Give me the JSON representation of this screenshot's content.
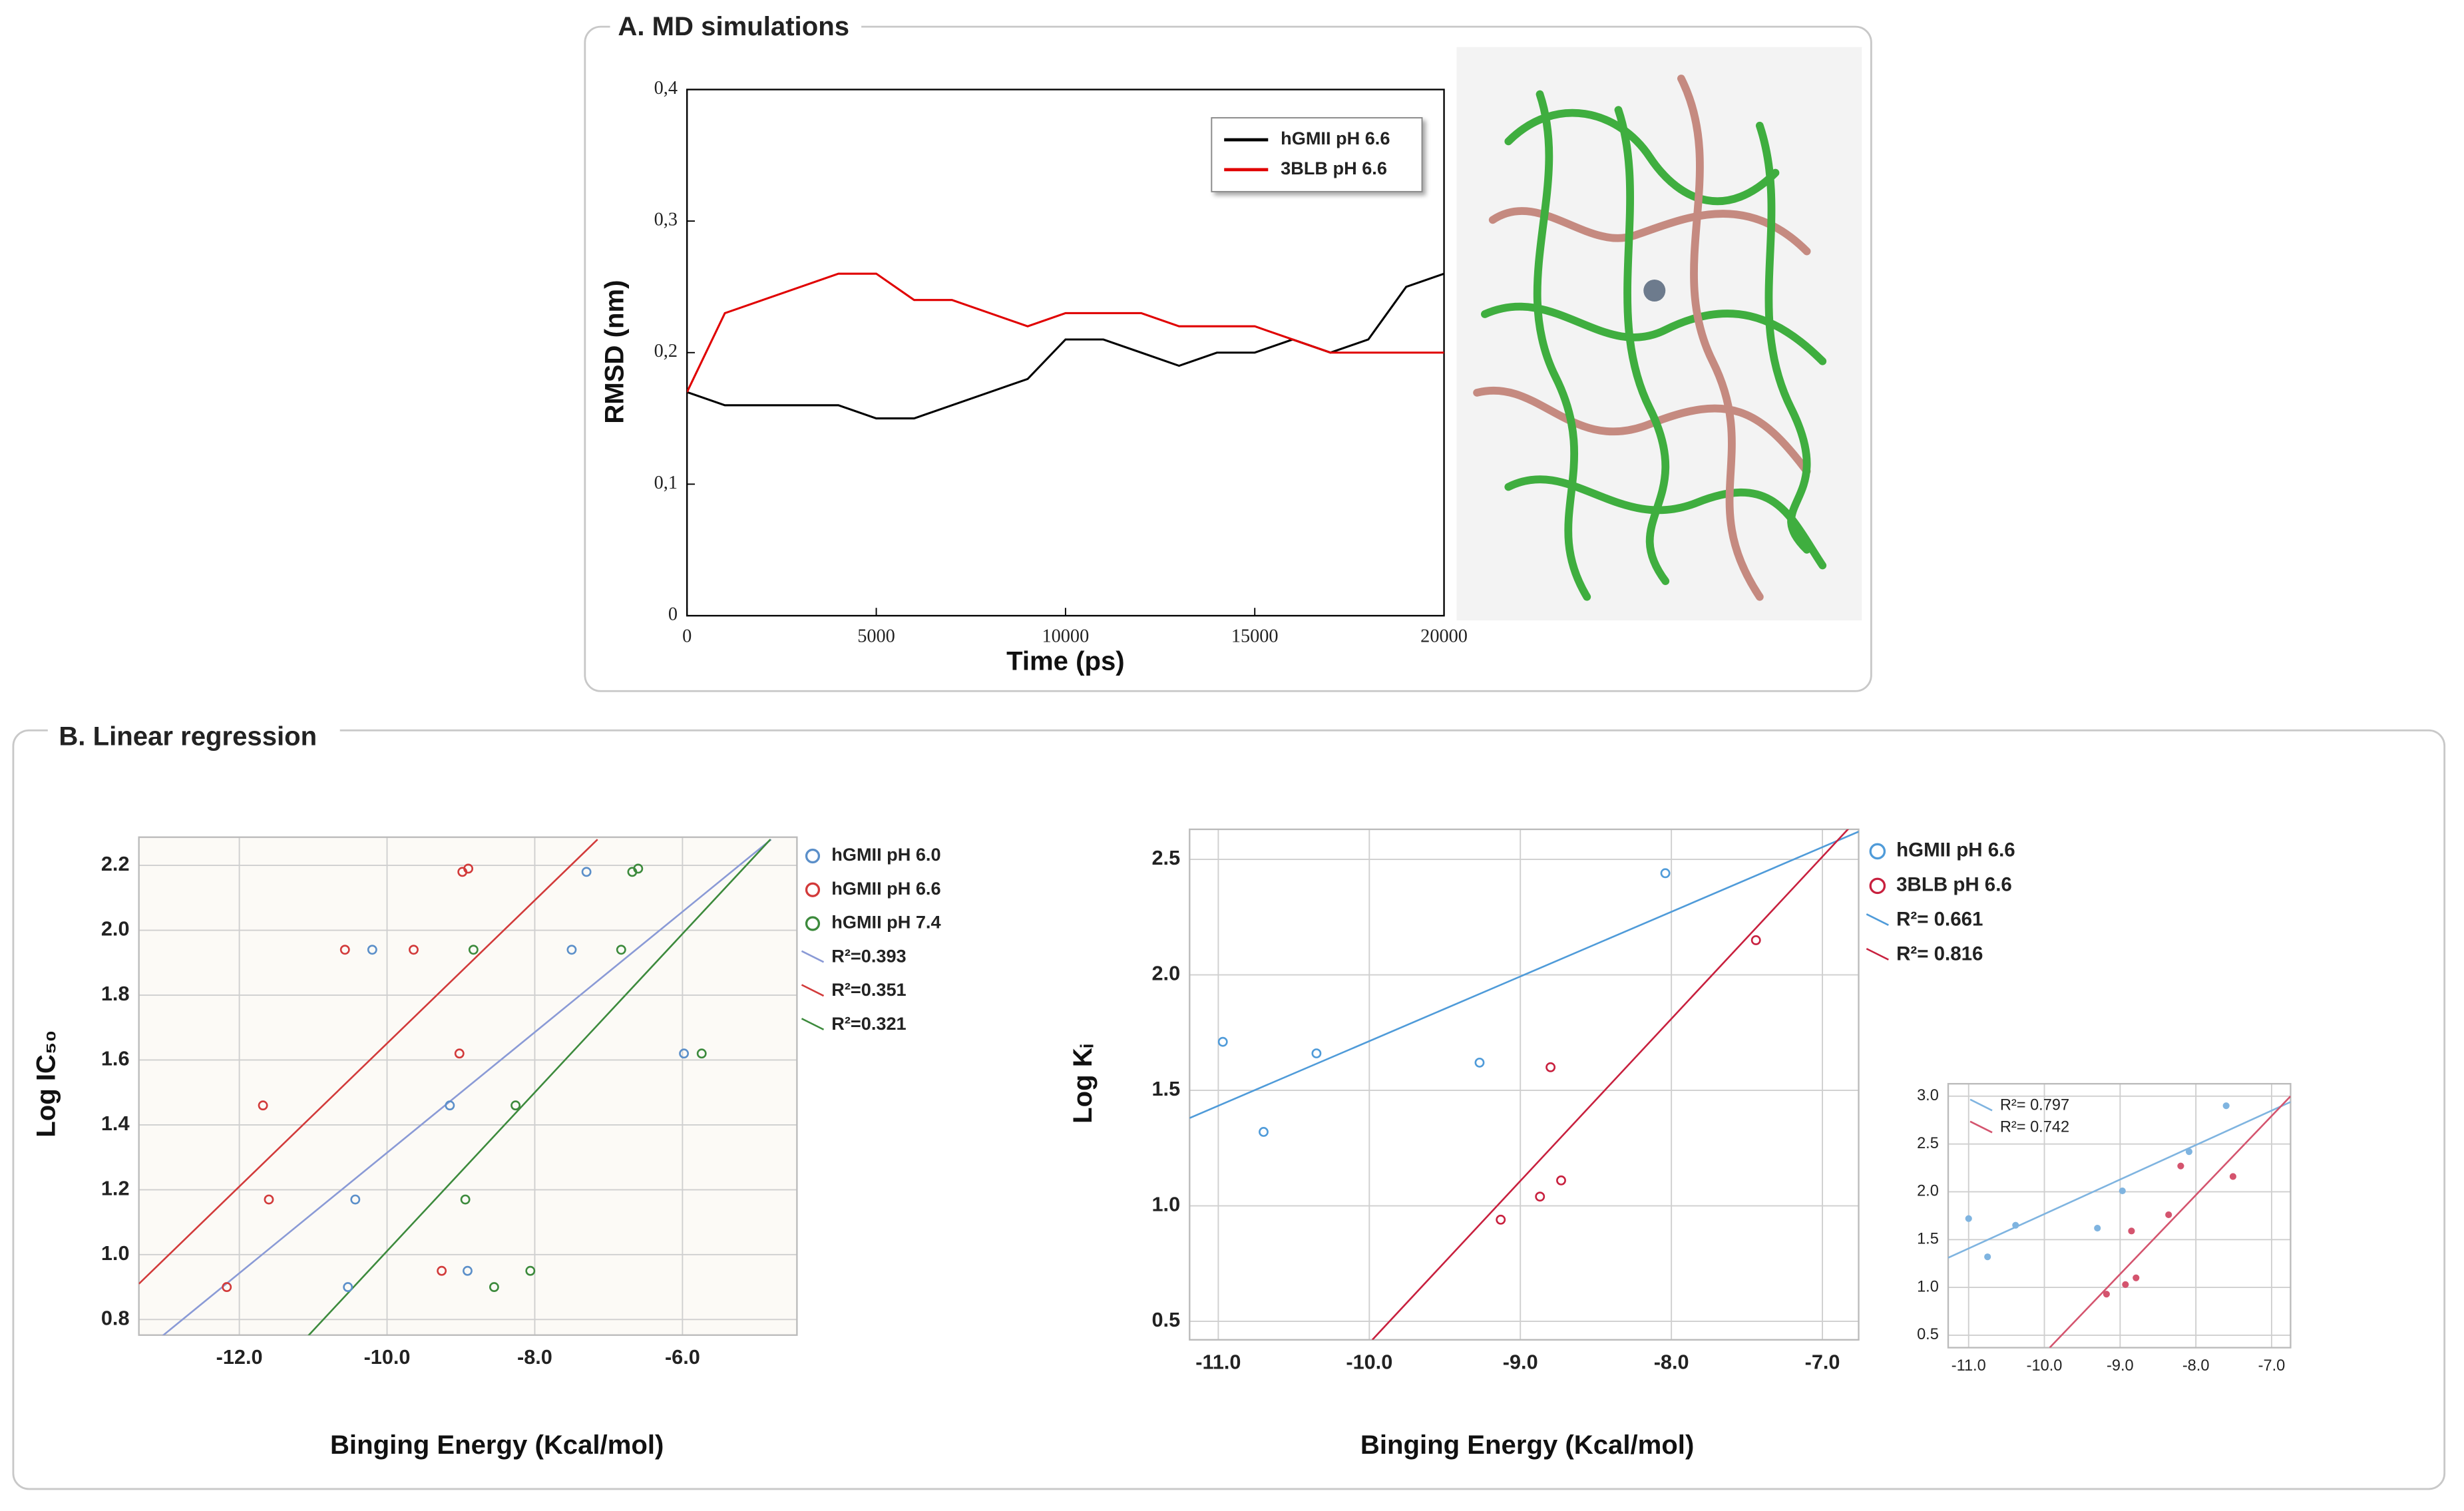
{
  "panels": [
    {
      "title": "A. MD simulations"
    },
    {
      "title": "B. Linear regression"
    }
  ],
  "chart_data": [
    {
      "type": "line",
      "xlabel": "Time (ps)",
      "ylabel": "RMSD (nm)",
      "x": [
        0,
        1000,
        2000,
        3000,
        4000,
        5000,
        6000,
        7000,
        8000,
        9000,
        10000,
        11000,
        12000,
        13000,
        14000,
        15000,
        16000,
        17000,
        18000,
        19000,
        20000
      ],
      "series": [
        {
          "name": "hGMII pH 6.6",
          "color": "#000000",
          "values": [
            0.17,
            0.16,
            0.16,
            0.16,
            0.16,
            0.15,
            0.15,
            0.16,
            0.17,
            0.18,
            0.21,
            0.21,
            0.2,
            0.19,
            0.2,
            0.2,
            0.21,
            0.2,
            0.21,
            0.25,
            0.26
          ]
        },
        {
          "name": "3BLB pH 6.6",
          "color": "#e00000",
          "values": [
            0.17,
            0.23,
            0.24,
            0.25,
            0.26,
            0.26,
            0.24,
            0.24,
            0.23,
            0.22,
            0.23,
            0.23,
            0.23,
            0.22,
            0.22,
            0.22,
            0.21,
            0.2,
            0.2,
            0.2,
            0.2
          ]
        }
      ],
      "xlim": [
        0,
        20000
      ],
      "xticks": [
        0,
        5000,
        10000,
        15000,
        20000
      ],
      "ylim": [
        0,
        0.4
      ],
      "yticks": [
        0,
        {
          "value": 0.1,
          "label": "0,1"
        },
        {
          "value": 0.2,
          "label": "0,2"
        },
        {
          "value": 0.3,
          "label": "0,3"
        },
        {
          "value": 0.4,
          "label": "0,4"
        }
      ],
      "grid": false
    },
    {
      "type": "scatter",
      "xlabel": "Binging Energy (Kcal/mol)",
      "ylabel": "Log IC₅₀",
      "hollow": true,
      "series": [
        {
          "name": "hGMII pH 6.0",
          "color": "#5b8fc9",
          "x": [
            -10.2,
            -7.3,
            -7.5,
            -9.15,
            -10.43,
            -10.53,
            -8.91,
            -5.98
          ],
          "values": [
            1.94,
            2.18,
            1.94,
            1.46,
            1.17,
            0.9,
            0.95,
            1.62
          ]
        },
        {
          "name": "hGMII pH 6.6",
          "color": "#d23a3a",
          "x": [
            -12.17,
            -11.68,
            -11.6,
            -10.57,
            -9.64,
            -8.98,
            -8.9,
            -9.02,
            -9.26
          ],
          "values": [
            0.9,
            1.46,
            1.17,
            1.94,
            1.94,
            2.18,
            2.19,
            1.62,
            0.95
          ]
        },
        {
          "name": "hGMII pH 7.4",
          "color": "#3c8a3c",
          "x": [
            -8.83,
            -8.26,
            -8.94,
            -8.55,
            -8.06,
            -6.68,
            -6.6,
            -6.83,
            -5.74
          ],
          "values": [
            1.94,
            1.46,
            1.17,
            0.9,
            0.95,
            2.18,
            2.19,
            1.94,
            1.62
          ]
        }
      ],
      "fits": [
        {
          "name": "R²=0.393",
          "color": "#8a9ad6",
          "x": [
            -13.2,
            -4.8
          ],
          "y": [
            0.72,
            2.28
          ]
        },
        {
          "name": "R²=0.351",
          "color": "#d23a3a",
          "x": [
            -13.36,
            -7.15
          ],
          "y": [
            0.91,
            2.28
          ]
        },
        {
          "name": "R²=0.321",
          "color": "#3c8a3c",
          "x": [
            -11.19,
            -4.81
          ],
          "y": [
            0.72,
            2.28
          ]
        }
      ],
      "xlim": [
        -13.36,
        -4.45
      ],
      "xticks": [
        {
          "value": -12,
          "label": "-12.0"
        },
        {
          "value": -10,
          "label": "-10.0"
        },
        {
          "value": -8,
          "label": "-8.0"
        },
        {
          "value": -6,
          "label": "-6.0"
        }
      ],
      "ylim": [
        0.752,
        2.287
      ],
      "yticks": [
        0.8,
        {
          "value": 1,
          "label": "1.0"
        },
        1.2,
        1.4,
        1.6,
        1.8,
        {
          "value": 2,
          "label": "2.0"
        },
        2.2
      ],
      "grid": true
    },
    {
      "type": "scatter",
      "xlabel": "Binging Energy (Kcal/mol)",
      "ylabel": "Log Kᵢ",
      "hollow": true,
      "series": [
        {
          "name": "hGMII pH 6.6",
          "color": "#4f9bd9",
          "x": [
            -10.97,
            -10.7,
            -10.35,
            -9.27,
            -8.04
          ],
          "values": [
            1.71,
            1.32,
            1.66,
            1.62,
            2.44
          ]
        },
        {
          "name": "3BLB pH 6.6",
          "color": "#c8203e",
          "x": [
            -9.13,
            -8.87,
            -8.8,
            -8.73,
            -7.44
          ],
          "values": [
            0.94,
            1.04,
            1.6,
            1.11,
            2.15
          ]
        }
      ],
      "fits": [
        {
          "name": "R²= 0.661",
          "color": "#4f9bd9",
          "x": [
            -11.19,
            -6.76
          ],
          "y": [
            1.38,
            2.62
          ]
        },
        {
          "name": "R²= 0.816",
          "color": "#c8203e",
          "x": [
            -9.98,
            -6.76
          ],
          "y": [
            0.42,
            2.68
          ]
        }
      ],
      "xlim": [
        -11.19,
        -6.76
      ],
      "xticks": [
        {
          "value": -11,
          "label": "-11.0"
        },
        {
          "value": -10,
          "label": "-10.0"
        },
        {
          "value": -9,
          "label": "-9.0"
        },
        {
          "value": -8,
          "label": "-8.0"
        },
        {
          "value": -7,
          "label": "-7.0"
        }
      ],
      "ylim": [
        0.42,
        2.63
      ],
      "yticks": [
        0.5,
        {
          "value": 1,
          "label": "1.0"
        },
        1.5,
        {
          "value": 2,
          "label": "2.0"
        },
        2.5
      ],
      "grid": true
    },
    {
      "type": "scatter",
      "hollow": false,
      "series": [
        {
          "color": "#7fb4e0",
          "x": [
            -11.0,
            -10.75,
            -10.38,
            -9.3,
            -8.97,
            -8.09,
            -7.6
          ],
          "values": [
            1.72,
            1.32,
            1.65,
            1.62,
            2.01,
            2.42,
            2.9
          ]
        },
        {
          "color": "#d4546e",
          "x": [
            -9.18,
            -8.93,
            -8.79,
            -8.85,
            -8.36,
            -8.2,
            -7.51
          ],
          "values": [
            0.93,
            1.03,
            1.1,
            1.59,
            1.76,
            2.27,
            2.16
          ]
        }
      ],
      "fits": [
        {
          "name": "R²= 0.797",
          "color": "#7fb4e0",
          "x": [
            -11.27,
            -6.75
          ],
          "y": [
            1.31,
            2.94
          ]
        },
        {
          "name": "R²= 0.742",
          "color": "#d4546e",
          "x": [
            -9.93,
            -6.75
          ],
          "y": [
            0.37,
            3.0
          ]
        }
      ],
      "xlim": [
        -11.27,
        -6.75
      ],
      "xticks": [
        {
          "value": -11,
          "label": "-11.0"
        },
        {
          "value": -10,
          "label": "-10.0"
        },
        {
          "value": -9,
          "label": "-9.0"
        },
        {
          "value": -8,
          "label": "-8.0"
        },
        {
          "value": -7,
          "label": "-7.0"
        }
      ],
      "ylim": [
        0.37,
        3.13
      ],
      "yticks": [
        0.5,
        {
          "value": 1,
          "label": "1.0"
        },
        1.5,
        {
          "value": 2,
          "label": "2.0"
        },
        2.5,
        {
          "value": 3,
          "label": "3.0"
        }
      ],
      "grid": true
    }
  ]
}
